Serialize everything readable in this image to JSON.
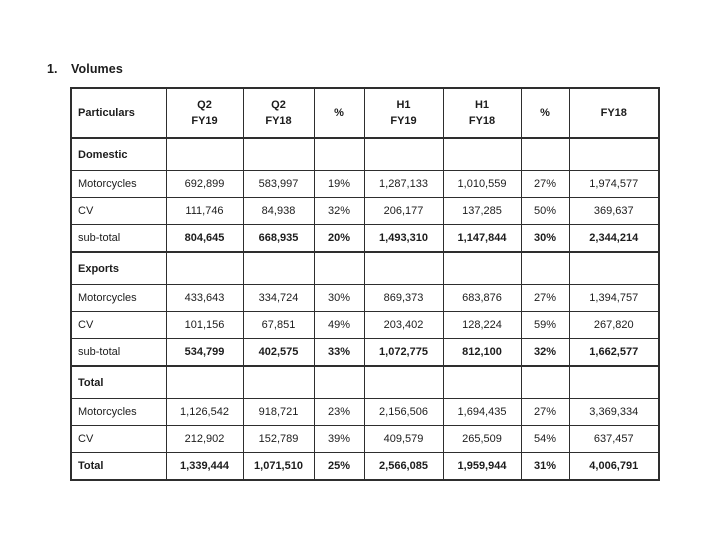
{
  "page": {
    "list_number": "1.",
    "title": "Volumes"
  },
  "colors": {
    "background": "#ffffff",
    "text": "#1c1c1c",
    "border": "#2e2e2e"
  },
  "table": {
    "headers": [
      "Particulars",
      "Q2\nFY19",
      "Q2\nFY18",
      "%",
      "H1\nFY19",
      "H1\nFY18",
      "%",
      "FY18"
    ],
    "sections": [
      {
        "name": "Domestic",
        "rows": [
          {
            "label": "Motorcycles",
            "emphasis": "none",
            "values": [
              "692,899",
              "583,997",
              "19%",
              "1,287,133",
              "1,010,559",
              "27%",
              "1,974,577"
            ]
          },
          {
            "label": "CV",
            "emphasis": "none",
            "values": [
              "111,746",
              "84,938",
              "32%",
              "206,177",
              "137,285",
              "50%",
              "369,637"
            ]
          },
          {
            "label": "sub-total",
            "emphasis": "values",
            "values": [
              "804,645",
              "668,935",
              "20%",
              "1,493,310",
              "1,147,844",
              "30%",
              "2,344,214"
            ]
          }
        ]
      },
      {
        "name": "Exports",
        "rows": [
          {
            "label": "Motorcycles",
            "emphasis": "none",
            "values": [
              "433,643",
              "334,724",
              "30%",
              "869,373",
              "683,876",
              "27%",
              "1,394,757"
            ]
          },
          {
            "label": "CV",
            "emphasis": "none",
            "values": [
              "101,156",
              "67,851",
              "49%",
              "203,402",
              "128,224",
              "59%",
              "267,820"
            ]
          },
          {
            "label": "sub-total",
            "emphasis": "values",
            "values": [
              "534,799",
              "402,575",
              "33%",
              "1,072,775",
              "812,100",
              "32%",
              "1,662,577"
            ]
          }
        ]
      },
      {
        "name": "Total",
        "rows": [
          {
            "label": "Motorcycles",
            "emphasis": "none",
            "values": [
              "1,126,542",
              "918,721",
              "23%",
              "2,156,506",
              "1,694,435",
              "27%",
              "3,369,334"
            ]
          },
          {
            "label": "CV",
            "emphasis": "none",
            "values": [
              "212,902",
              "152,789",
              "39%",
              "409,579",
              "265,509",
              "54%",
              "637,457"
            ]
          },
          {
            "label": "Total",
            "emphasis": "all",
            "values": [
              "1,339,444",
              "1,071,510",
              "25%",
              "2,566,085",
              "1,959,944",
              "31%",
              "4,006,791"
            ]
          }
        ]
      }
    ]
  }
}
